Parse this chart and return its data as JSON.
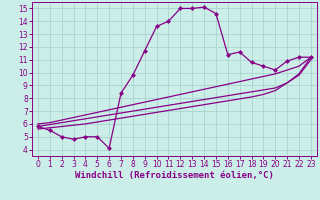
{
  "xlabel": "Windchill (Refroidissement éolien,°C)",
  "xlim": [
    -0.5,
    23.5
  ],
  "ylim": [
    3.5,
    15.5
  ],
  "xticks": [
    0,
    1,
    2,
    3,
    4,
    5,
    6,
    7,
    8,
    9,
    10,
    11,
    12,
    13,
    14,
    15,
    16,
    17,
    18,
    19,
    20,
    21,
    22,
    23
  ],
  "yticks": [
    4,
    5,
    6,
    7,
    8,
    9,
    10,
    11,
    12,
    13,
    14,
    15
  ],
  "bg_color": "#cceee8",
  "grid_color": "#aad4ce",
  "line_color": "#880088",
  "curve1_x": [
    0,
    1,
    2,
    3,
    4,
    5,
    6,
    7,
    8,
    9,
    10,
    11,
    12,
    13,
    14,
    15,
    16,
    17,
    18,
    19,
    20,
    21,
    22,
    23
  ],
  "curve1_y": [
    5.8,
    5.5,
    5.0,
    4.8,
    5.0,
    5.0,
    4.1,
    8.4,
    9.8,
    11.7,
    13.6,
    14.0,
    15.0,
    15.0,
    15.1,
    14.6,
    11.4,
    11.6,
    10.8,
    10.5,
    10.2,
    10.9,
    11.2,
    11.2
  ],
  "curve2_x": [
    0,
    1,
    2,
    3,
    4,
    5,
    6,
    7,
    8,
    9,
    10,
    11,
    12,
    13,
    14,
    15,
    16,
    17,
    18,
    19,
    20,
    21,
    22,
    23
  ],
  "curve2_y": [
    6.0,
    6.1,
    6.3,
    6.5,
    6.7,
    6.9,
    7.1,
    7.3,
    7.5,
    7.7,
    7.9,
    8.1,
    8.3,
    8.5,
    8.7,
    8.9,
    9.1,
    9.3,
    9.5,
    9.7,
    9.9,
    10.2,
    10.5,
    11.2
  ],
  "curve3_x": [
    0,
    1,
    2,
    3,
    4,
    5,
    6,
    7,
    8,
    9,
    10,
    11,
    12,
    13,
    14,
    15,
    16,
    17,
    18,
    19,
    20,
    21,
    22,
    23
  ],
  "curve3_y": [
    5.8,
    5.95,
    6.1,
    6.25,
    6.4,
    6.55,
    6.7,
    6.85,
    7.0,
    7.15,
    7.3,
    7.45,
    7.6,
    7.75,
    7.9,
    8.05,
    8.2,
    8.35,
    8.5,
    8.65,
    8.8,
    9.2,
    9.8,
    11.0
  ],
  "curve4_x": [
    0,
    1,
    2,
    3,
    4,
    5,
    6,
    7,
    8,
    9,
    10,
    11,
    12,
    13,
    14,
    15,
    16,
    17,
    18,
    19,
    20,
    21,
    22,
    23
  ],
  "curve4_y": [
    5.6,
    5.7,
    5.8,
    5.9,
    6.0,
    6.15,
    6.3,
    6.45,
    6.6,
    6.75,
    6.9,
    7.05,
    7.2,
    7.35,
    7.5,
    7.65,
    7.8,
    7.95,
    8.1,
    8.3,
    8.6,
    9.2,
    9.9,
    11.2
  ],
  "markersize": 2.5,
  "linewidth": 0.9,
  "tick_fontsize": 5.5,
  "xlabel_fontsize": 6.5
}
